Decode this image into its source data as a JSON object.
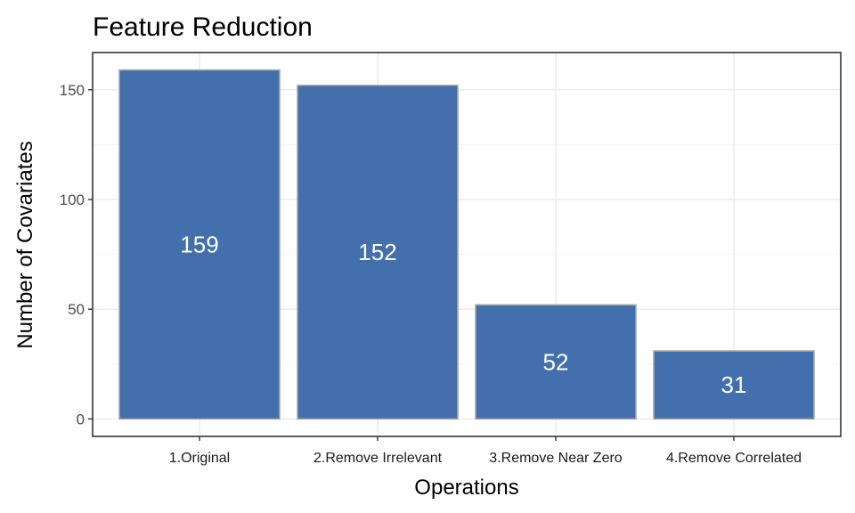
{
  "chart_data": {
    "type": "bar",
    "title": "Feature Reduction",
    "xlabel": "Operations",
    "ylabel": "Number of Covariates",
    "categories": [
      "1.Original",
      "2.Remove Irrelevant",
      "3.Remove Near Zero",
      "4.Remove Correlated"
    ],
    "values": [
      159,
      152,
      52,
      31
    ],
    "value_labels": [
      "159",
      "152",
      "52",
      "31"
    ],
    "yticks": [
      0,
      50,
      100,
      150
    ],
    "ytick_labels": [
      "0",
      "50",
      "100",
      "150"
    ],
    "ylim": [
      -7.95,
      166.95
    ],
    "grid": true,
    "legend": "none",
    "colors": {
      "bar_fill": "#436FAD",
      "bar_outline": "#A6A6A6",
      "panel_border": "#333333",
      "grid_major": "#EBEBEB",
      "grid_minor": "#F5F5F5",
      "tick_label": "#4D4D4D"
    }
  }
}
